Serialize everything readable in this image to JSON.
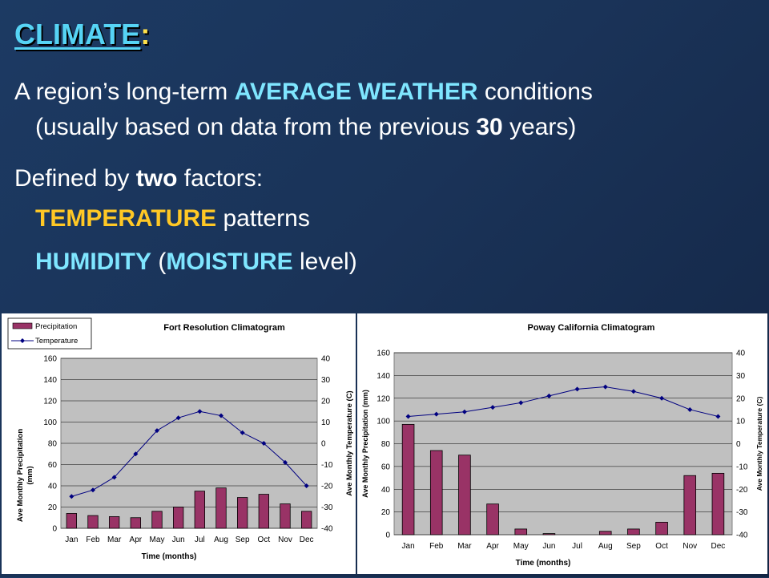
{
  "slide": {
    "title": "CLIMATE",
    "title_colon": ":",
    "def": {
      "p1": "A region’s long-term ",
      "p1_hl": "AVERAGE WEATHER",
      "p1_end": " conditions",
      "p2": "(usually based on data from the previous ",
      "p2_num": "30",
      "p2_end": " years)"
    },
    "factors": {
      "p1": "Defined by ",
      "p1_bold": "two",
      "p1_end": " factors:"
    },
    "temp": {
      "hl": "TEMPERATURE",
      "rest": " patterns"
    },
    "humid": {
      "hl1": "HUMIDITY",
      "open": " (",
      "hl2": "MOISTURE",
      "rest": " level)"
    }
  },
  "colors": {
    "bar": "#993366",
    "line": "#000080",
    "plot_bg": "#c0c0c0",
    "accent_cyan": "#7fe6ff",
    "accent_gold": "#ffc825"
  },
  "chart_data": [
    {
      "type": "bar+line",
      "title": "Fort Resolution Climatogram",
      "categories": [
        "Jan",
        "Feb",
        "Mar",
        "Apr",
        "May",
        "Jun",
        "Jul",
        "Aug",
        "Sep",
        "Oct",
        "Nov",
        "Dec"
      ],
      "series": [
        {
          "name": "Precipitation",
          "type": "bar",
          "axis": "left",
          "values": [
            14,
            12,
            11,
            10,
            16,
            20,
            35,
            38,
            29,
            32,
            23,
            16
          ]
        },
        {
          "name": "Temperature",
          "type": "line",
          "axis": "right",
          "values": [
            -25,
            -22,
            -16,
            -5,
            6,
            12,
            15,
            13,
            5,
            0,
            -9,
            -20
          ]
        }
      ],
      "xlabel": "Time (months)",
      "ylabel": "Ave Monthly Precipitation (mm)",
      "y2label": "Ave Monthly Temperature (C)",
      "ylim": [
        0,
        160
      ],
      "yticks": [
        0,
        20,
        40,
        60,
        80,
        100,
        120,
        140,
        160
      ],
      "y2lim": [
        -40,
        40
      ],
      "y2ticks": [
        -40,
        -30,
        -20,
        -10,
        0,
        10,
        20,
        30,
        40
      ],
      "legend": "top-left",
      "grid": true
    },
    {
      "type": "bar+line",
      "title": "Poway California Climatogram",
      "categories": [
        "Jan",
        "Feb",
        "Mar",
        "Apr",
        "May",
        "Jun",
        "Jul",
        "Aug",
        "Sep",
        "Oct",
        "Nov",
        "Dec"
      ],
      "series": [
        {
          "name": "Precipitation",
          "type": "bar",
          "axis": "left",
          "values": [
            97,
            74,
            70,
            27,
            5,
            1,
            0,
            3,
            5,
            11,
            52,
            54
          ]
        },
        {
          "name": "Temperature",
          "type": "line",
          "axis": "right",
          "values": [
            12,
            13,
            14,
            16,
            18,
            21,
            24,
            25,
            23,
            20,
            15,
            12
          ]
        }
      ],
      "xlabel": "Time (months)",
      "ylabel": "Ave Monthly Precipitation (mm)",
      "y2label": "Ave Monthly Temperature (C)",
      "ylim": [
        0,
        160
      ],
      "yticks": [
        0,
        20,
        40,
        60,
        80,
        100,
        120,
        140,
        160
      ],
      "y2lim": [
        -40,
        40
      ],
      "y2ticks": [
        -40,
        -30,
        -20,
        -10,
        0,
        10,
        20,
        30,
        40
      ],
      "legend": "none",
      "grid": true
    }
  ]
}
